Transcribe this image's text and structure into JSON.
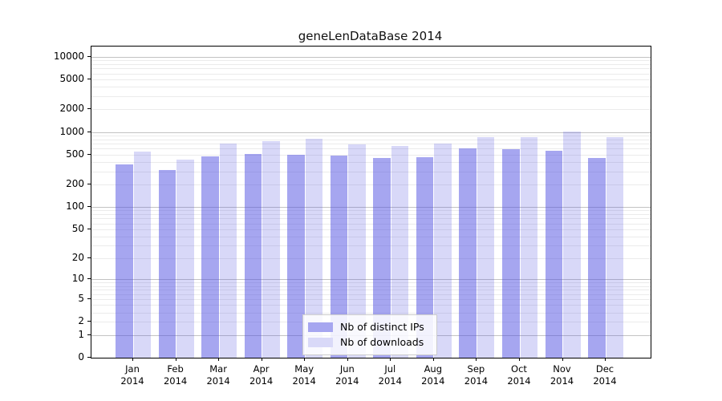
{
  "title": "geneLenDataBase 2014",
  "chart_data": {
    "type": "bar",
    "title": "geneLenDataBase 2014",
    "categories": [
      "Jan",
      "Feb",
      "Mar",
      "Apr",
      "May",
      "Jun",
      "Jul",
      "Aug",
      "Sep",
      "Oct",
      "Nov",
      "Dec"
    ],
    "x_sublabel": "2014",
    "series": [
      {
        "name": "Nb of distinct IPs",
        "color": "rgba(77,77,225,0.50)",
        "swatch": "#a6a6f0",
        "values": [
          367,
          312,
          468,
          507,
          500,
          485,
          450,
          463,
          600,
          590,
          568,
          452
        ]
      },
      {
        "name": "Nb of downloads",
        "color": "rgba(77,77,225,0.22)",
        "swatch": "#d9d9f8",
        "values": [
          550,
          430,
          705,
          750,
          815,
          685,
          655,
          705,
          850,
          860,
          1020,
          860
        ]
      }
    ],
    "y_scale": "log10(1+x)",
    "y_ticks": [
      10000,
      5000,
      2000,
      1000,
      500,
      200,
      100,
      50,
      20,
      10,
      5,
      2,
      1,
      0
    ],
    "ylim": [
      0,
      13700
    ],
    "grid": true,
    "legend_position": "lower center",
    "legend_entries": [
      "Nb of distinct IPs",
      "Nb of downloads"
    ]
  }
}
